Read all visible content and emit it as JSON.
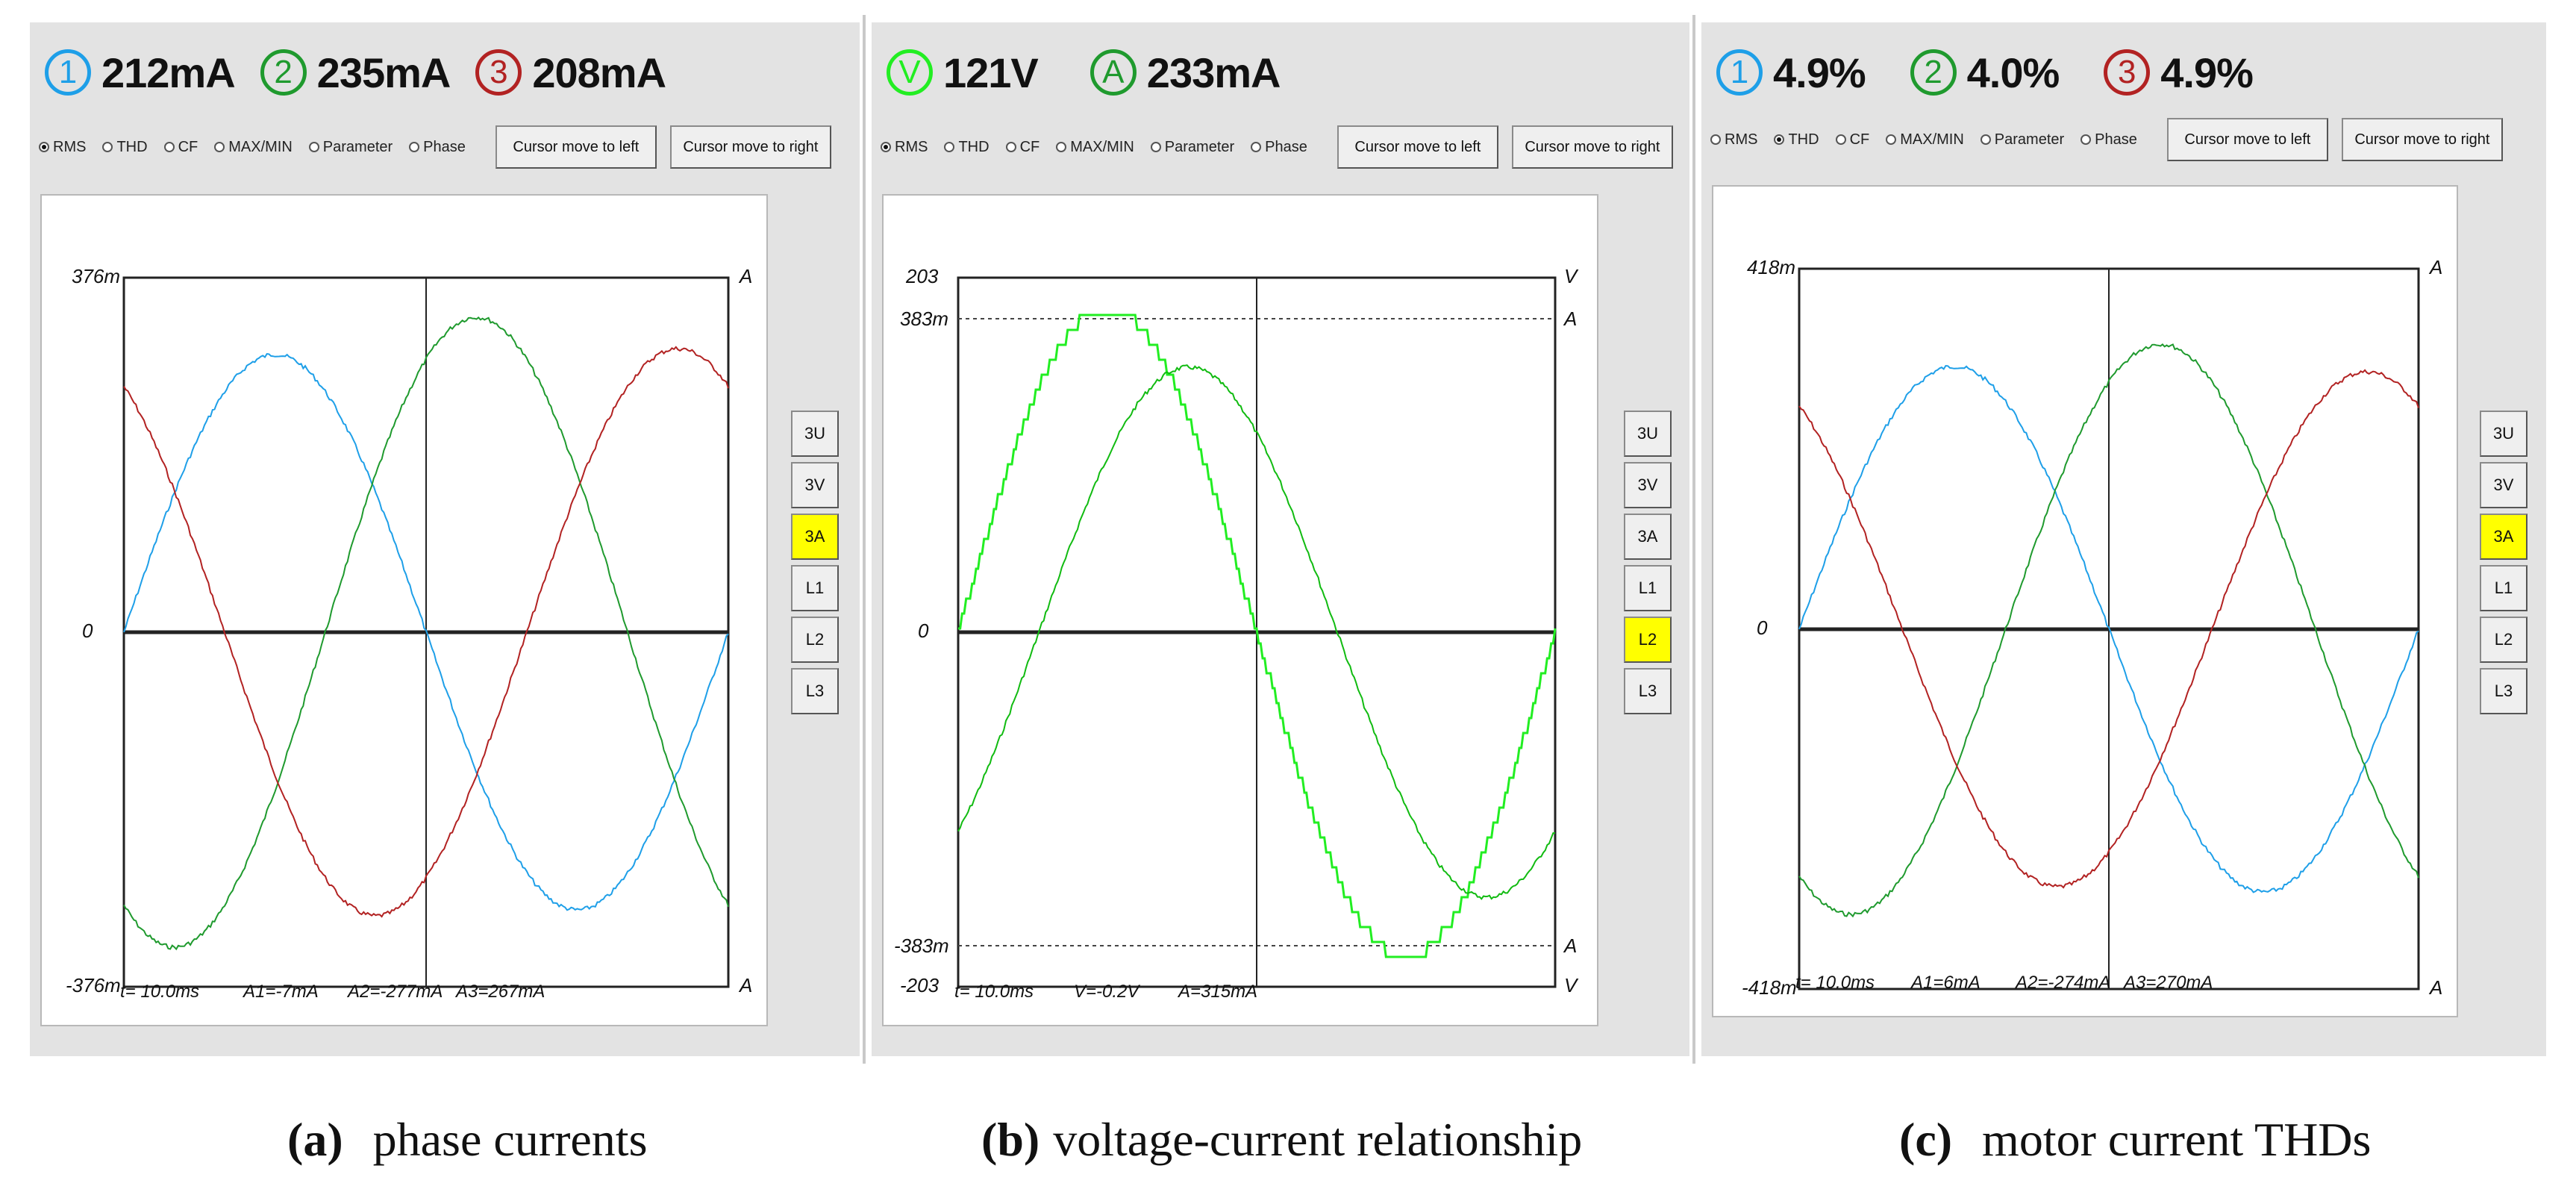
{
  "colors": {
    "blue": "#1e9fe8",
    "green": "#1f9a2e",
    "red": "#b22222",
    "bright_green": "#22ee22",
    "bright_green_dark": "#11bb11",
    "active": "#ffff00"
  },
  "mode_labels": [
    "RMS",
    "THD",
    "CF",
    "MAX/MIN",
    "Parameter",
    "Phase"
  ],
  "cursor_left": "Cursor move to left",
  "cursor_right": "Cursor move to right",
  "side_buttons": [
    "3U",
    "3V",
    "3A",
    "L1",
    "L2",
    "L3"
  ],
  "panels": [
    {
      "readings": [
        {
          "symbol": "1",
          "value": "212mA",
          "color": "blue"
        },
        {
          "symbol": "2",
          "value": "235mA",
          "color": "green"
        },
        {
          "symbol": "3",
          "value": "208mA",
          "color": "red"
        }
      ],
      "selected_mode": "RMS",
      "active_side": "3A",
      "y_top": "376m",
      "y_zero": "0",
      "y_bottom": "-376m",
      "unit": "A",
      "info": {
        "t": "t= 10.0ms",
        "v1": "A1=-7mA",
        "v2": "A2=-277mA",
        "v3": "A3=267mA"
      }
    },
    {
      "readings": [
        {
          "symbol": "V",
          "value": "121V",
          "color": "bright_green"
        },
        {
          "symbol": "A",
          "value": "233mA",
          "color": "green"
        }
      ],
      "selected_mode": "RMS",
      "active_side": "L2",
      "y_top_v": "203",
      "y_top_a": "383m",
      "y_zero": "0",
      "y_bottom_a": "-383m",
      "y_bottom_v": "-203",
      "unit_v": "V",
      "unit_a": "A",
      "info": {
        "t": "t= 10.0ms",
        "v1": "V=-0.2V",
        "v2": "A=315mA"
      }
    },
    {
      "readings": [
        {
          "symbol": "1",
          "value": "4.9%",
          "color": "blue"
        },
        {
          "symbol": "2",
          "value": "4.0%",
          "color": "green"
        },
        {
          "symbol": "3",
          "value": "4.9%",
          "color": "red"
        }
      ],
      "selected_mode": "THD",
      "active_side": "3A",
      "y_top": "418m",
      "y_zero": "0",
      "y_bottom": "-418m",
      "unit": "A",
      "info": {
        "t": "t= 10.0ms",
        "v1": "A1=6mA",
        "v2": "A2=-274mA",
        "v3": "A3=270mA"
      }
    }
  ],
  "captions": [
    {
      "label": "(a)",
      "text": "phase currents"
    },
    {
      "label": "(b)",
      "text": "voltage-current relationship"
    },
    {
      "label": "(c)",
      "text": "motor current THDs"
    }
  ]
}
